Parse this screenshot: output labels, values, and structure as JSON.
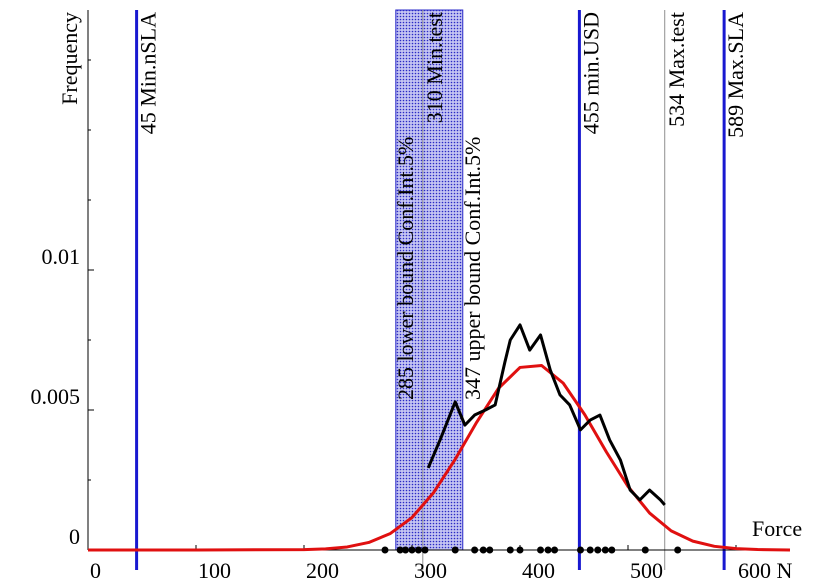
{
  "chart_data": {
    "type": "line",
    "y_label": "Frequency",
    "x_label": "Force",
    "xlim": [
      0,
      650
    ],
    "ylim": [
      0,
      0.019
    ],
    "xticks": [
      0,
      100,
      200,
      300,
      400,
      500,
      {
        "value": 600,
        "label": "600 N"
      }
    ],
    "yticks": [
      0,
      0.005,
      0.01
    ],
    "series": [
      {
        "color": "#e01010",
        "x": [
          0,
          100,
          200,
          220,
          240,
          260,
          280,
          300,
          320,
          340,
          360,
          380,
          400,
          420,
          440,
          460,
          480,
          500,
          520,
          540,
          560,
          580,
          600,
          620,
          650
        ],
        "values": [
          0,
          0,
          1.3e-05,
          3.98e-05,
          0.000109,
          0.000269,
          0.000591,
          0.00116,
          0.00205,
          0.00324,
          0.00457,
          0.00577,
          0.00652,
          0.00659,
          0.00596,
          0.00483,
          0.0035,
          0.00227,
          0.00132,
          0.000683,
          0.000317,
          0.000132,
          4.91e-05,
          1.65e-05,
          0
        ]
      },
      {
        "color": "#000000",
        "x": [
          315,
          326,
          340,
          349,
          358,
          368,
          377,
          386,
          391,
          400,
          409,
          419,
          428,
          437,
          446,
          456,
          465,
          474,
          483,
          493,
          502,
          511,
          520,
          530,
          534
        ],
        "values": [
          0.00293,
          0.00393,
          0.00529,
          0.00446,
          0.00482,
          0.005,
          0.00518,
          0.00671,
          0.0075,
          0.00804,
          0.00714,
          0.00768,
          0.00643,
          0.00554,
          0.00518,
          0.00429,
          0.00464,
          0.00482,
          0.00393,
          0.00321,
          0.00214,
          0.00179,
          0.00214,
          0.00179,
          0.00161
        ]
      }
    ],
    "sample_points": {
      "color": "#000000",
      "x": [
        275,
        289,
        294,
        300,
        306,
        312,
        340,
        358,
        366,
        372,
        391,
        400,
        419,
        426,
        432,
        456,
        465,
        472,
        479,
        485,
        516,
        546
      ],
      "values": [
        0,
        0,
        0,
        0,
        0,
        0,
        0,
        0,
        0,
        0,
        0,
        0,
        0,
        0,
        0,
        0,
        0,
        0,
        0,
        0,
        0,
        0
      ]
    },
    "band": {
      "from": 285,
      "to": 347,
      "color": "#2828c8",
      "from_label": "285 lower bound Conf.Int.5%",
      "to_label": "347 upper bound Conf.Int.5%"
    },
    "markers": [
      {
        "value": 45,
        "label": "45 Min.nSLA",
        "color": "#1818d0"
      },
      {
        "value": 310,
        "label": "310 Min.test",
        "color": "#909090"
      },
      {
        "value": 455,
        "label": "455  min.USD",
        "color": "#1818d0"
      },
      {
        "value": 534,
        "label": "534 Max.test",
        "color": "#909090"
      },
      {
        "value": 589,
        "label": "589 Max.SLA",
        "color": "#1818d0"
      }
    ]
  }
}
